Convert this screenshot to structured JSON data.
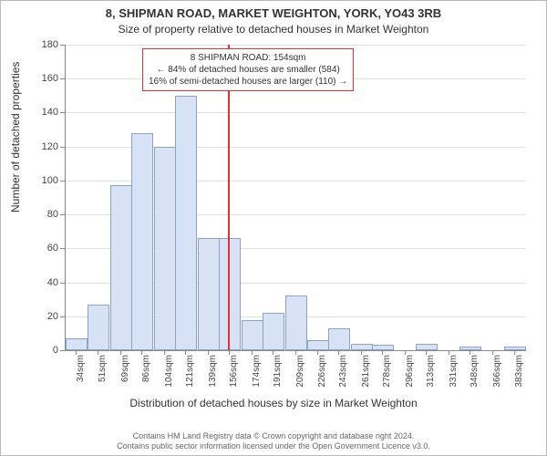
{
  "title_line1": "8, SHIPMAN ROAD, MARKET WEIGHTON, YORK, YO43 3RB",
  "title_line2": "Size of property relative to detached houses in Market Weighton",
  "ylabel": "Number of detached properties",
  "xlabel": "Distribution of detached houses by size in Market Weighton",
  "footer_line1": "Contains HM Land Registry data © Crown copyright and database right 2024.",
  "footer_line2": "Contains public sector information licensed under the Open Government Licence v3.0.",
  "annotation": {
    "line1": "8 SHIPMAN ROAD: 154sqm",
    "line2": "← 84% of detached houses are smaller (584)",
    "line3": "16% of semi-detached houses are larger (110) →",
    "border_color": "#e03030"
  },
  "chart": {
    "type": "histogram",
    "background_color": "#ffffff",
    "grid_color": "#e0e0e0",
    "axis_color": "#888888",
    "bar_fill": "#d7e2f4",
    "bar_border": "#8aa3cc",
    "marker_color": "#e03030",
    "marker_value": 154,
    "ylim": [
      0,
      180
    ],
    "ytick_step": 20,
    "xmin": 25,
    "xmax": 392,
    "bar_unit_width": 17.5,
    "x_ticks": [
      34,
      51,
      69,
      86,
      104,
      121,
      139,
      156,
      174,
      191,
      209,
      226,
      243,
      261,
      278,
      296,
      313,
      331,
      348,
      366,
      383
    ],
    "x_tick_suffix": "sqm",
    "bars": [
      {
        "x": 34,
        "v": 7
      },
      {
        "x": 51,
        "v": 27
      },
      {
        "x": 69,
        "v": 97
      },
      {
        "x": 86,
        "v": 128
      },
      {
        "x": 104,
        "v": 120
      },
      {
        "x": 121,
        "v": 150
      },
      {
        "x": 139,
        "v": 66
      },
      {
        "x": 156,
        "v": 66
      },
      {
        "x": 174,
        "v": 18
      },
      {
        "x": 191,
        "v": 22
      },
      {
        "x": 209,
        "v": 32
      },
      {
        "x": 226,
        "v": 6
      },
      {
        "x": 243,
        "v": 13
      },
      {
        "x": 261,
        "v": 4
      },
      {
        "x": 278,
        "v": 3
      },
      {
        "x": 296,
        "v": 0
      },
      {
        "x": 313,
        "v": 4
      },
      {
        "x": 331,
        "v": 0
      },
      {
        "x": 348,
        "v": 2
      },
      {
        "x": 366,
        "v": 0
      },
      {
        "x": 383,
        "v": 2
      }
    ],
    "title_fontsize": 13,
    "subtitle_fontsize": 12,
    "label_fontsize": 12,
    "tick_fontsize": 11,
    "xtick_fontsize": 10,
    "annotation_fontsize": 10,
    "footer_fontsize": 9
  }
}
